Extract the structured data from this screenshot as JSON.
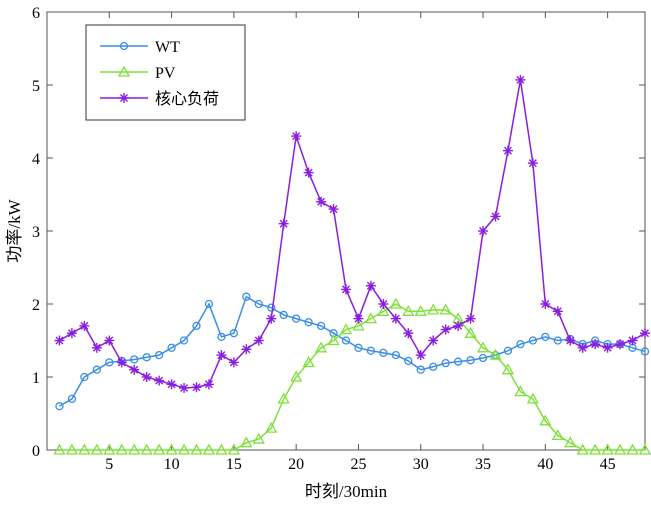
{
  "chart_data": {
    "type": "line",
    "title": "",
    "xlabel": "时刻/30min",
    "ylabel": "功率/kW",
    "xlim": [
      0,
      48
    ],
    "ylim": [
      0,
      6
    ],
    "xticks": [
      5,
      10,
      15,
      20,
      25,
      30,
      35,
      40,
      45
    ],
    "yticks": [
      0,
      1,
      2,
      3,
      4,
      5,
      6
    ],
    "grid": false,
    "legend_position": "top-left",
    "x": [
      1,
      2,
      3,
      4,
      5,
      6,
      7,
      8,
      9,
      10,
      11,
      12,
      13,
      14,
      15,
      16,
      17,
      18,
      19,
      20,
      21,
      22,
      23,
      24,
      25,
      26,
      27,
      28,
      29,
      30,
      31,
      32,
      33,
      34,
      35,
      36,
      37,
      38,
      39,
      40,
      41,
      42,
      43,
      44,
      45,
      46,
      47,
      48
    ],
    "series": [
      {
        "name": "WT",
        "color": "#3a8ee6",
        "marker": "circle",
        "values": [
          0.6,
          0.7,
          1.0,
          1.1,
          1.2,
          1.22,
          1.24,
          1.27,
          1.3,
          1.4,
          1.5,
          1.7,
          2.0,
          1.55,
          1.6,
          2.1,
          2.0,
          1.95,
          1.85,
          1.8,
          1.75,
          1.7,
          1.6,
          1.5,
          1.4,
          1.36,
          1.33,
          1.3,
          1.22,
          1.1,
          1.14,
          1.19,
          1.21,
          1.23,
          1.26,
          1.3,
          1.36,
          1.45,
          1.5,
          1.55,
          1.5,
          1.52,
          1.45,
          1.5,
          1.45,
          1.45,
          1.4,
          1.35
        ]
      },
      {
        "name": "PV",
        "color": "#7fe03a",
        "marker": "triangle",
        "values": [
          0,
          0,
          0,
          0,
          0,
          0,
          0,
          0,
          0,
          0,
          0,
          0,
          0,
          0,
          0,
          0.1,
          0.15,
          0.3,
          0.7,
          1.0,
          1.2,
          1.4,
          1.5,
          1.65,
          1.7,
          1.8,
          1.9,
          2.0,
          1.9,
          1.9,
          1.92,
          1.92,
          1.8,
          1.6,
          1.4,
          1.3,
          1.1,
          0.8,
          0.7,
          0.4,
          0.2,
          0.1,
          0,
          0,
          0,
          0,
          0,
          0
        ]
      },
      {
        "name": "核心负荷",
        "color": "#8a1ee0",
        "marker": "star",
        "values": [
          1.5,
          1.6,
          1.7,
          1.4,
          1.5,
          1.2,
          1.1,
          1.0,
          0.95,
          0.9,
          0.85,
          0.86,
          0.9,
          1.3,
          1.2,
          1.38,
          1.5,
          1.8,
          3.1,
          4.3,
          3.8,
          3.4,
          3.3,
          2.2,
          1.8,
          2.25,
          2.0,
          1.8,
          1.6,
          1.3,
          1.5,
          1.65,
          1.7,
          1.8,
          3.0,
          3.2,
          4.1,
          5.07,
          3.93,
          2.0,
          1.9,
          1.5,
          1.4,
          1.45,
          1.4,
          1.45,
          1.5,
          1.6
        ]
      }
    ]
  }
}
